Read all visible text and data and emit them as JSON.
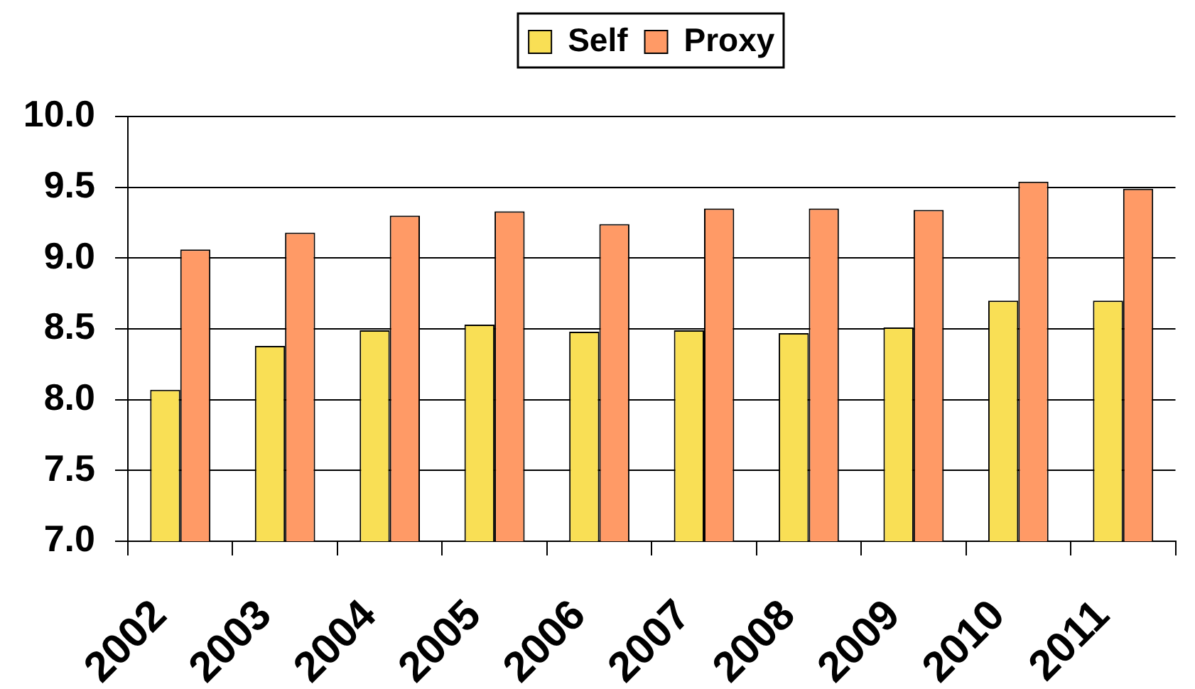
{
  "chart_data": {
    "type": "bar",
    "categories": [
      "2002",
      "2003",
      "2004",
      "2005",
      "2006",
      "2007",
      "2008",
      "2009",
      "2010",
      "2011"
    ],
    "series": [
      {
        "name": "Self",
        "color": "#f9df55",
        "values": [
          8.07,
          8.38,
          8.49,
          8.53,
          8.48,
          8.49,
          8.47,
          8.51,
          8.7,
          8.7
        ]
      },
      {
        "name": "Proxy",
        "color": "#ff9a66",
        "values": [
          9.06,
          9.18,
          9.3,
          9.33,
          9.24,
          9.35,
          9.35,
          9.34,
          9.54,
          9.49
        ]
      }
    ],
    "ylim": [
      7.0,
      10.0
    ],
    "yticks": [
      {
        "value": 7.0,
        "label": "7.0"
      },
      {
        "value": 7.5,
        "label": "7.5"
      },
      {
        "value": 8.0,
        "label": "8.0"
      },
      {
        "value": 8.5,
        "label": "8.5"
      },
      {
        "value": 9.0,
        "label": "9.0"
      },
      {
        "value": 9.5,
        "label": "9.5"
      },
      {
        "value": 10.0,
        "label": "10.0"
      }
    ],
    "grid": "y",
    "legend": "top"
  }
}
